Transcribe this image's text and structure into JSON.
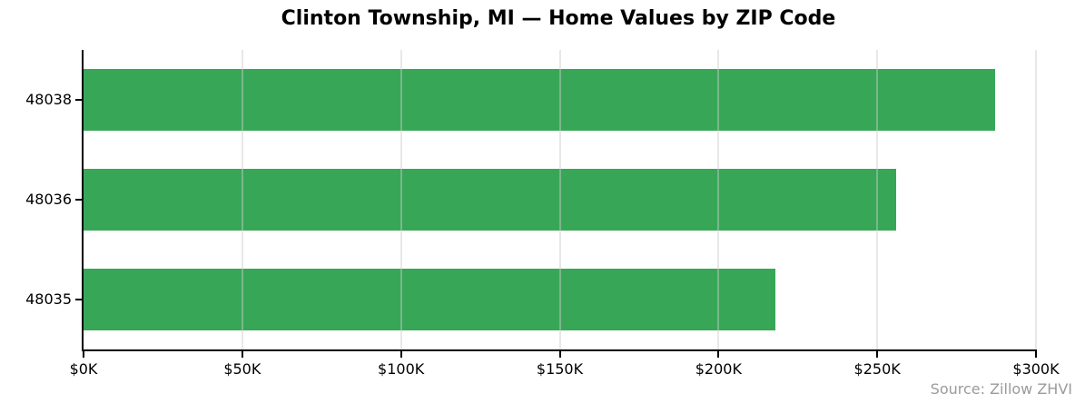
{
  "title": "Clinton Township, MI — Home Values by ZIP Code",
  "source_note": "Source: Zillow ZHVI",
  "colors": {
    "bar": "#37a757",
    "gridline": "rgba(205,205,205,0.45)",
    "axis": "#000000",
    "source_text": "#9b9b9b"
  },
  "chart_data": {
    "type": "bar",
    "orientation": "horizontal",
    "title": "Clinton Township, MI — Home Values by ZIP Code",
    "categories": [
      "48038",
      "48036",
      "48035"
    ],
    "values": [
      287,
      256,
      218
    ],
    "value_unit": "thousand USD",
    "xlabel": "",
    "ylabel": "",
    "xlim": [
      0,
      300
    ],
    "xticks": [
      0,
      50,
      100,
      150,
      200,
      250,
      300
    ],
    "xtick_labels": [
      "$0K",
      "$50K",
      "$100K",
      "$150K",
      "$200K",
      "$250K",
      "$300K"
    ],
    "grid": "vertical-over-bars",
    "legend": "none",
    "annotation": "Source: Zillow ZHVI"
  }
}
